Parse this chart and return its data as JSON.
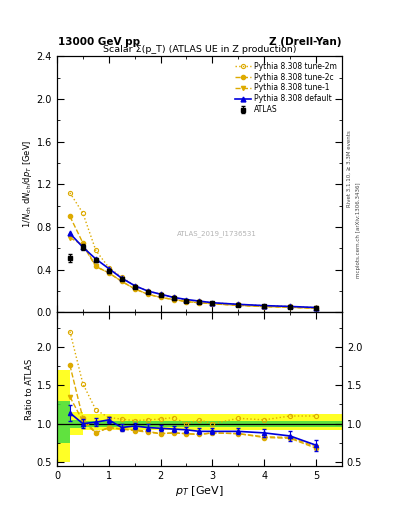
{
  "title_top": "13000 GeV pp",
  "title_right": "Z (Drell-Yan)",
  "plot_title": "Scalar Σ(p_T) (ATLAS UE in Z production)",
  "ylabel_main": "1/N_{ch} dN_{ch}/dp_T [GeV]",
  "ylabel_ratio": "Ratio to ATLAS",
  "xlabel": "p_T [GeV]",
  "right_label1": "Rivet 3.1.10, ≥ 3.3M events",
  "right_label2": "mcplots.cern.ch [arXiv:1306.3436]",
  "watermark": "ATLAS_2019_I1736531",
  "atlas_x": [
    0.25,
    0.5,
    0.75,
    1.0,
    1.25,
    1.5,
    1.75,
    2.0,
    2.25,
    2.5,
    2.75,
    3.0,
    3.5,
    4.0,
    4.5,
    5.0
  ],
  "atlas_y": [
    0.51,
    0.61,
    0.49,
    0.39,
    0.31,
    0.24,
    0.19,
    0.16,
    0.13,
    0.11,
    0.1,
    0.09,
    0.07,
    0.06,
    0.05,
    0.04
  ],
  "atlas_yerr": [
    0.04,
    0.03,
    0.02,
    0.02,
    0.01,
    0.01,
    0.01,
    0.01,
    0.01,
    0.01,
    0.005,
    0.005,
    0.005,
    0.004,
    0.003,
    0.003
  ],
  "default_x": [
    0.25,
    0.5,
    0.75,
    1.0,
    1.25,
    1.5,
    1.75,
    2.0,
    2.25,
    2.5,
    2.75,
    3.0,
    3.5,
    4.0,
    4.5,
    5.0
  ],
  "default_y": [
    0.74,
    0.61,
    0.5,
    0.41,
    0.32,
    0.25,
    0.2,
    0.17,
    0.14,
    0.12,
    0.105,
    0.09,
    0.075,
    0.063,
    0.055,
    0.045
  ],
  "tune1_x": [
    0.25,
    0.5,
    0.75,
    1.0,
    1.25,
    1.5,
    1.75,
    2.0,
    2.25,
    2.5,
    2.75,
    3.0,
    3.5,
    4.0,
    4.5,
    5.0
  ],
  "tune1_y": [
    0.7,
    0.63,
    0.43,
    0.37,
    0.29,
    0.22,
    0.17,
    0.14,
    0.12,
    0.1,
    0.09,
    0.08,
    0.065,
    0.054,
    0.047,
    0.038
  ],
  "tune2c_x": [
    0.25,
    0.5,
    0.75,
    1.0,
    1.25,
    1.5,
    1.75,
    2.0,
    2.25,
    2.5,
    2.75,
    3.0,
    3.5,
    4.0,
    4.5,
    5.0
  ],
  "tune2c_y": [
    0.9,
    0.65,
    0.43,
    0.37,
    0.29,
    0.22,
    0.17,
    0.14,
    0.12,
    0.1,
    0.09,
    0.08,
    0.065,
    0.053,
    0.046,
    0.037
  ],
  "tune2m_x": [
    0.25,
    0.5,
    0.75,
    1.0,
    1.25,
    1.5,
    1.75,
    2.0,
    2.25,
    2.5,
    2.75,
    3.0,
    3.5,
    4.0,
    4.5,
    5.0
  ],
  "tune2m_y": [
    1.12,
    0.93,
    0.58,
    0.42,
    0.33,
    0.25,
    0.2,
    0.17,
    0.14,
    0.11,
    0.105,
    0.09,
    0.075,
    0.063,
    0.055,
    0.044
  ],
  "ratio_default_y": [
    1.14,
    1.0,
    1.02,
    1.05,
    0.95,
    0.97,
    0.95,
    0.94,
    0.93,
    0.92,
    0.9,
    0.9,
    0.9,
    0.88,
    0.84,
    0.72
  ],
  "ratio_default_yerr": [
    0.1,
    0.06,
    0.05,
    0.04,
    0.04,
    0.04,
    0.04,
    0.04,
    0.04,
    0.04,
    0.04,
    0.04,
    0.04,
    0.05,
    0.06,
    0.07
  ],
  "ratio_tune1_y": [
    1.35,
    1.03,
    0.88,
    0.95,
    0.93,
    0.92,
    0.9,
    0.87,
    0.88,
    0.87,
    0.86,
    0.88,
    0.87,
    0.83,
    0.82,
    0.7
  ],
  "ratio_tune2c_y": [
    1.76,
    1.07,
    0.88,
    0.95,
    0.93,
    0.91,
    0.89,
    0.87,
    0.88,
    0.87,
    0.86,
    0.88,
    0.87,
    0.82,
    0.81,
    0.68
  ],
  "ratio_tune2m_y": [
    2.2,
    1.52,
    1.18,
    1.08,
    1.06,
    1.04,
    1.05,
    1.06,
    1.08,
    1.0,
    1.05,
    1.0,
    1.07,
    1.05,
    1.1,
    1.1
  ],
  "band_x_edges": [
    0.0,
    0.25,
    0.5,
    1.0,
    5.5
  ],
  "band_yellow_lo": [
    0.5,
    0.85,
    0.92,
    0.92,
    0.92
  ],
  "band_yellow_hi": [
    1.7,
    1.15,
    1.12,
    1.12,
    1.12
  ],
  "band_green_lo": [
    0.75,
    0.95,
    0.96,
    0.96,
    0.96
  ],
  "band_green_hi": [
    1.3,
    1.05,
    1.04,
    1.04,
    1.04
  ],
  "color_atlas": "#000000",
  "color_default": "#0000dd",
  "color_tune1": "#ddaa00",
  "color_tune2c": "#ddaa00",
  "color_tune2m": "#ddaa00",
  "xlim": [
    0,
    5.5
  ],
  "ylim_main": [
    0.0,
    2.4
  ],
  "ylim_ratio": [
    0.45,
    2.45
  ],
  "legend_labels": [
    "ATLAS",
    "Pythia 8.308 default",
    "Pythia 8.308 tune-1",
    "Pythia 8.308 tune-2c",
    "Pythia 8.308 tune-2m"
  ]
}
